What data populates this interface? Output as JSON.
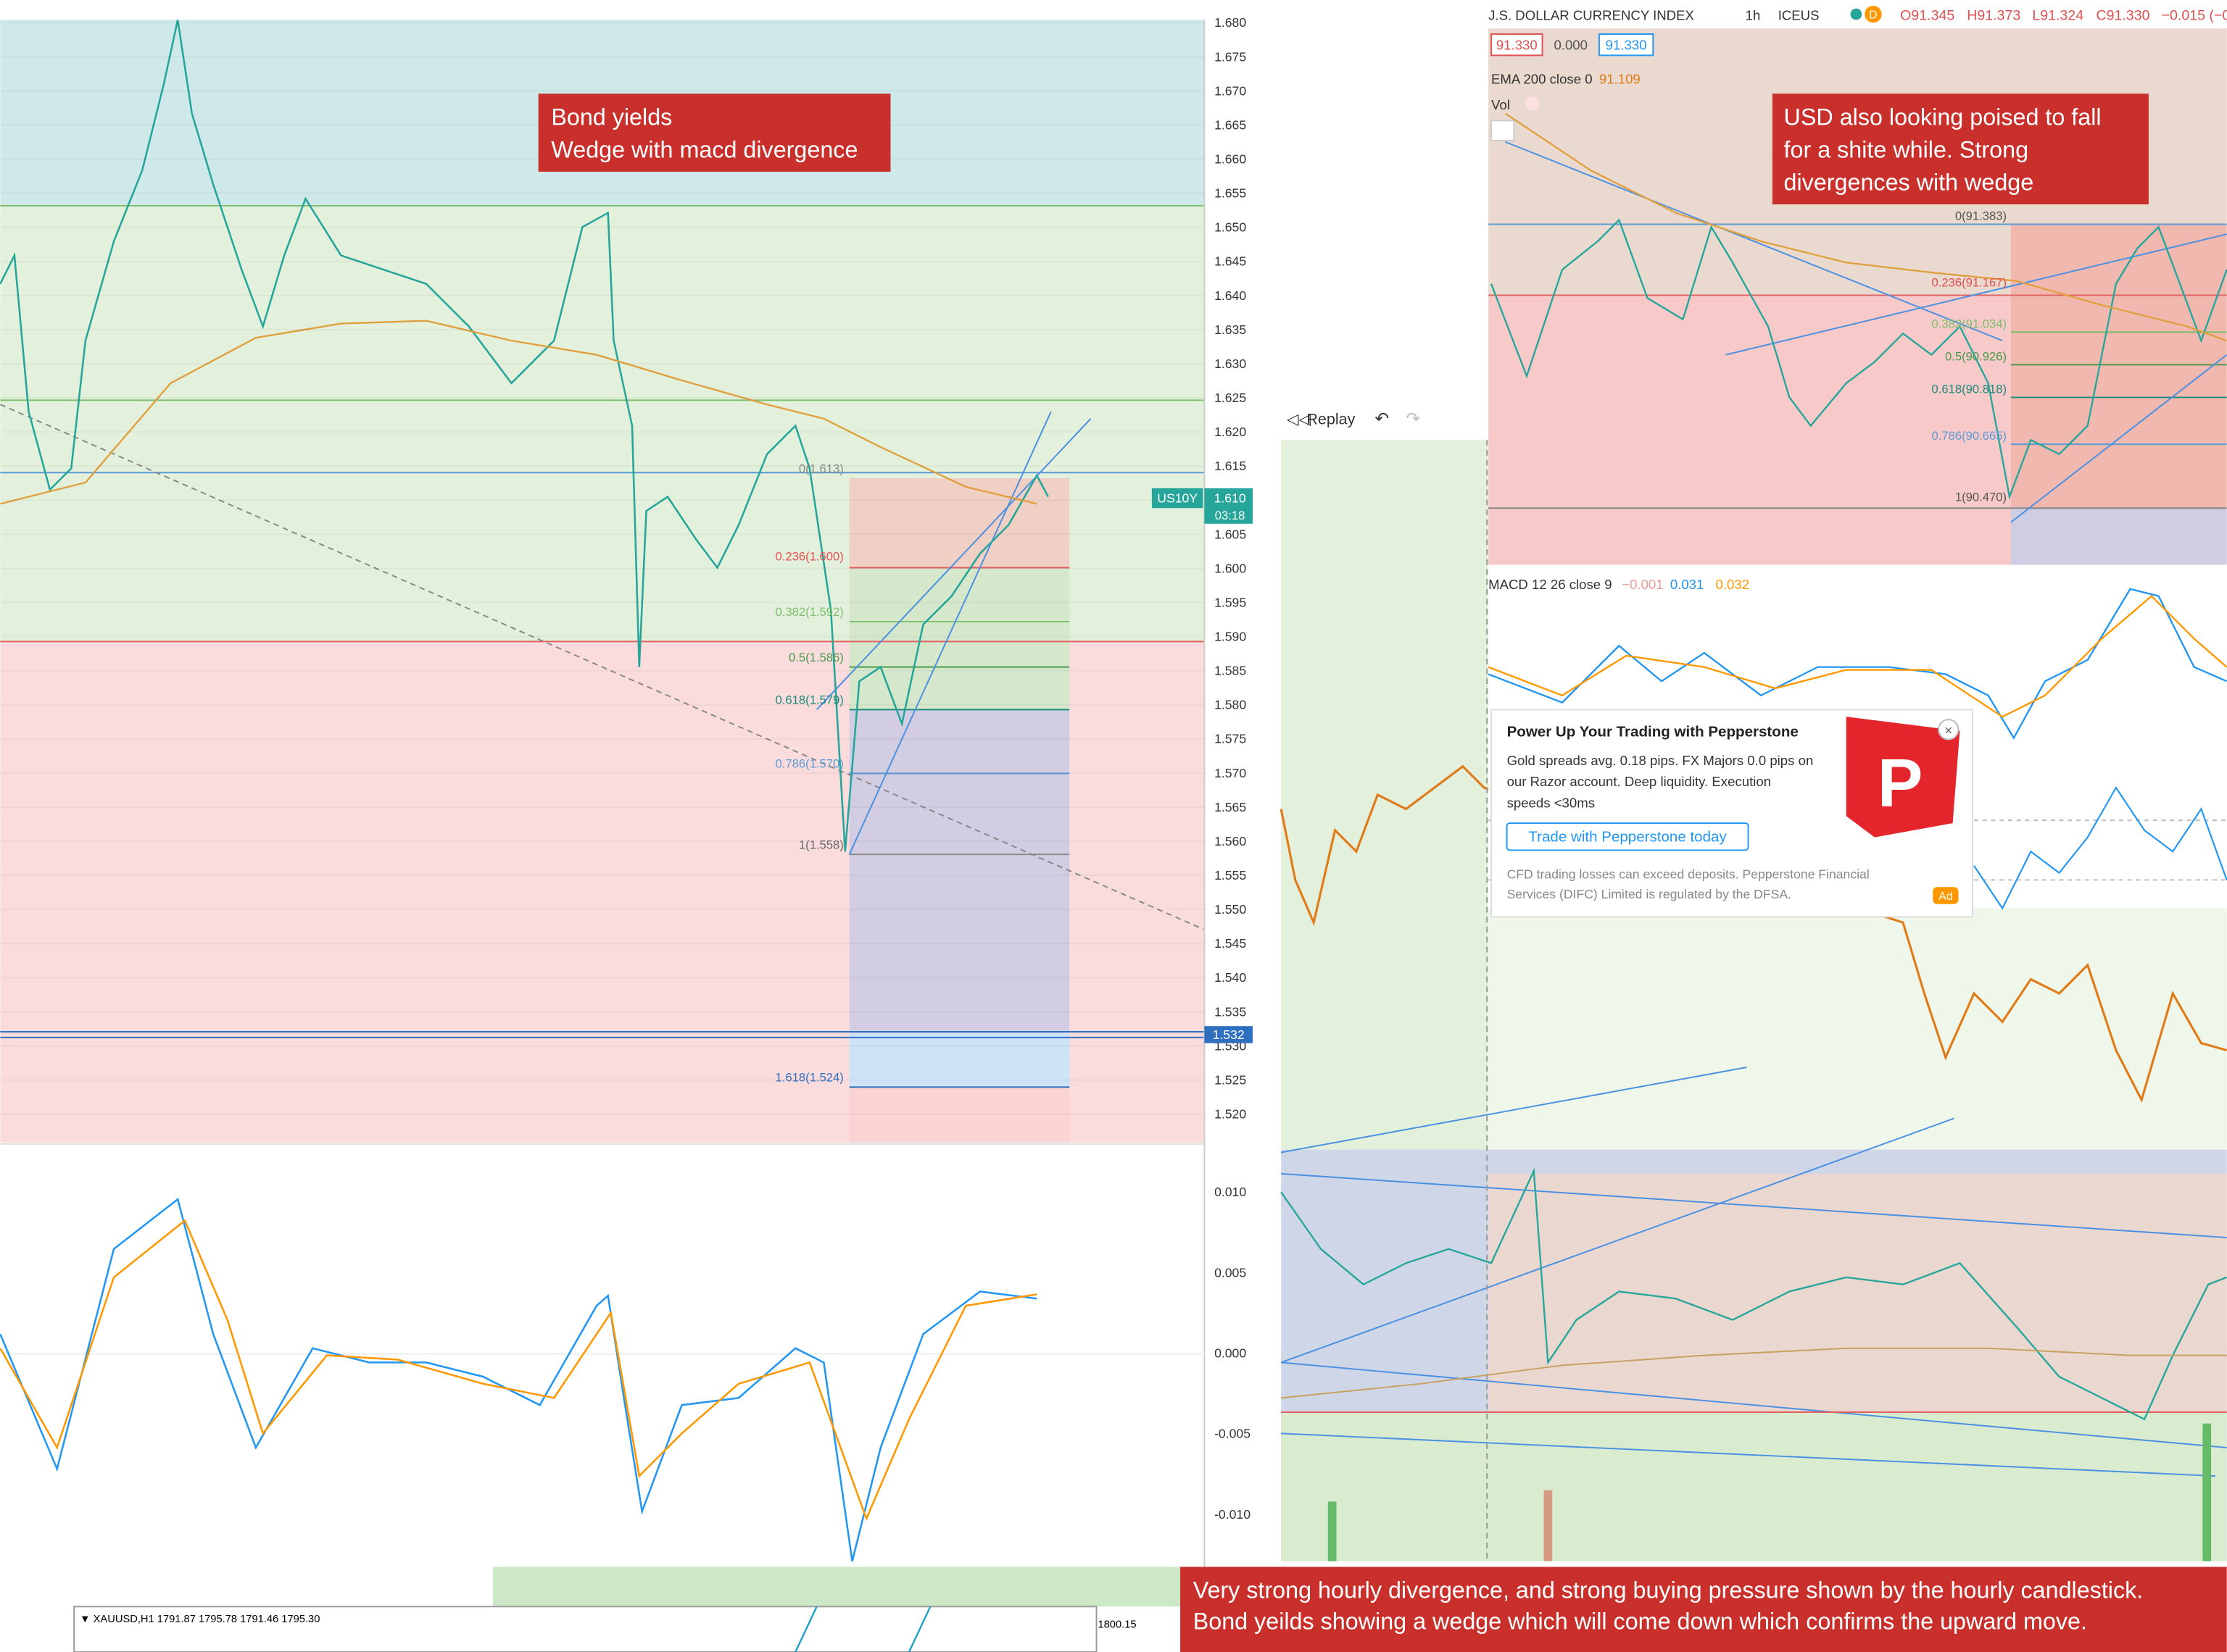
{
  "left_chart": {
    "annotation": [
      "Bond yields",
      "Wedge with macd divergence"
    ],
    "price_axis": [
      "1.680",
      "1.675",
      "1.670",
      "1.665",
      "1.660",
      "1.655",
      "1.650",
      "1.645",
      "1.640",
      "1.635",
      "1.630",
      "1.625",
      "1.620",
      "1.615",
      "1.610",
      "1.605",
      "1.600",
      "1.595",
      "1.590",
      "1.585",
      "1.580",
      "1.575",
      "1.570",
      "1.565",
      "1.560",
      "1.555",
      "1.550",
      "1.545",
      "1.540",
      "1.535",
      "1.530",
      "1.525",
      "1.520"
    ],
    "macd_axis": [
      "0.010",
      "0.005",
      "0.000",
      "-0.005",
      "-0.010"
    ],
    "symbol_badge": "US10Y",
    "last_price": "1.610",
    "countdown": "03:18",
    "line_price": "1.532",
    "fib_levels": [
      "0(1.613)",
      "0.236(1.600)",
      "0.382(1.592)",
      "0.5(1.586)",
      "0.618(1.579)",
      "0.786(1.570)",
      "1(1.558)",
      "1.618(1.524)"
    ]
  },
  "right_chart": {
    "annotation": [
      "USD also looking poised to fall",
      "for a shite while. Strong",
      "divergences with wedge"
    ],
    "header": {
      "title": "J.S. DOLLAR CURRENCY INDEX",
      "interval": "1h",
      "exchange": "ICEUS",
      "badge": "D",
      "open": "O91.345",
      "high": "H91.373",
      "low": "L91.324",
      "close": "C91.330",
      "change": "−0.015 (−0.0"
    },
    "boxes": [
      "91.330",
      "0.000",
      "91.330"
    ],
    "ema": {
      "label": "EMA 200 close 0",
      "value": "91.109"
    },
    "vol": "Vol",
    "fib_levels": [
      "0(91.383)",
      "0.236(91.167)",
      "0.382(91.034)",
      "0.5(90.926)",
      "0.618(90.818)",
      "0.786(90.665)",
      "1(90.470)"
    ],
    "macd": {
      "label": "MACD 12 26 close 9",
      "values": [
        "−0.001",
        "0.031",
        "0.032"
      ]
    },
    "replay": "Replay"
  },
  "ad": {
    "title": "Power Up Your Trading with Pepperstone",
    "body": [
      "Gold spreads avg. 0.18 pips. FX Majors 0.0 pips on",
      "our Razor account. Deep liquidity. Execution",
      "speeds <30ms"
    ],
    "button": "Trade with Pepperstone today",
    "disclaimer": [
      "CFD trading losses can exceed deposits. Pepperstone Financial",
      "Services (DIFC) Limited is regulated by the DFSA."
    ],
    "badge": "Ad"
  },
  "bottom": {
    "annotation": [
      "Very strong hourly divergence, and strong buying pressure shown by the hourly candlestick.",
      "Bond yeilds showing a wedge which will come down which confirms the upward move."
    ],
    "mt4_header": "▼ XAUUSD,H1  1791.87 1795.78 1791.46 1795.30",
    "mt4_price": "1800.15"
  }
}
